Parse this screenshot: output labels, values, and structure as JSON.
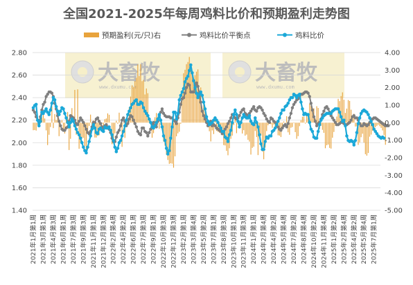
{
  "chart_data": {
    "type": "bar+line",
    "title": "全国2021-2025年每周鸡料比价和预期盈利走势图",
    "legend": [
      {
        "name": "预期盈利(元/只)右",
        "marker": "bar",
        "color": "#E8A33C"
      },
      {
        "name": "鸡料比价平衡点",
        "marker": "line-dot",
        "color": "#7F7F7F"
      },
      {
        "name": "鸡料比价",
        "marker": "line-dot",
        "color": "#1BA8D8"
      }
    ],
    "legend_position": "top",
    "y_left": {
      "min": 1.4,
      "max": 2.8,
      "step": 0.2,
      "ticks": [
        "1.40",
        "1.60",
        "1.80",
        "2.00",
        "2.20",
        "2.40",
        "2.60",
        "2.80"
      ]
    },
    "y_right": {
      "min": -5.0,
      "max": 4.0,
      "step": 1.0,
      "ticks": [
        "-5.00",
        "-4.00",
        "-3.00",
        "-2.00",
        "-1.00",
        "0.00",
        "1.00",
        "2.00",
        "3.00",
        "4.00"
      ]
    },
    "grid": true,
    "x_tick_labels": [
      "2021年1月第1周",
      "2021年3月第1周",
      "2021年4月第3周",
      "2021年6月第1周",
      "2021年7月第3周",
      "2021年9月第3周",
      "2021年11月第1周",
      "2021年12月第3周",
      "2022年2月第4周",
      "2022年4月第2周",
      "2022年6月第1周",
      "2022年7月第3周",
      "2022年9月第1周",
      "2022年10月第3周",
      "2022年12月第3周",
      "2023年2月第1周",
      "2023年3月第4周",
      "2023年5月第2周",
      "2023年7月第1周",
      "2023年8月第3周",
      "2023年10月第1周",
      "2023年11月第3周",
      "2024年1月第1周",
      "2024年2月第4周",
      "2024年4月第2周",
      "2024年5月第4周",
      "2024年7月第2周",
      "2024年8月第4周",
      "2024年10月第2周",
      "2024年11月第4周",
      "2025年1月第2周",
      "2025年2月第4周",
      "2025年4月第2周",
      "2025年5月第4周",
      "2025年7月第1周"
    ],
    "weeks": 243,
    "x_tick_every": 7,
    "series": [
      {
        "name": "鸡料比价",
        "color": "#1BA8D8",
        "axis": "left",
        "values": [
          2.31,
          2.33,
          2.34,
          2.2,
          2.15,
          2.19,
          2.27,
          2.26,
          2.28,
          2.3,
          2.27,
          2.25,
          2.29,
          2.35,
          2.4,
          2.38,
          2.32,
          2.28,
          2.25,
          2.28,
          2.31,
          2.3,
          2.26,
          2.22,
          2.18,
          2.14,
          2.18,
          2.21,
          2.19,
          2.15,
          2.12,
          2.09,
          2.07,
          2.04,
          2,
          1.96,
          1.93,
          1.91,
          1.96,
          2.01,
          2.06,
          2.12,
          2.16,
          2.13,
          2.09,
          2.08,
          2.12,
          2.13,
          2.11,
          2.1,
          2.14,
          2.13,
          2.13,
          2.14,
          2.11,
          2.07,
          2.02,
          1.96,
          1.92,
          1.95,
          2,
          2.02,
          2.06,
          2.1,
          2.15,
          2.2,
          2.25,
          2.28,
          2.31,
          2.34,
          2.35,
          2.37,
          2.38,
          2.34,
          2.34,
          2.36,
          2.35,
          2.31,
          2.28,
          2.26,
          2.24,
          2.21,
          2.18,
          2.14,
          2.13,
          2.15,
          2.18,
          2.21,
          2.25,
          2.2,
          2.14,
          2.06,
          2.02,
          1.95,
          1.9,
          1.93,
          2.04,
          2.14,
          2.27,
          2.27,
          2.21,
          2.26,
          2.38,
          2.42,
          2.45,
          2.48,
          2.54,
          2.57,
          2.59,
          2.64,
          2.69,
          2.62,
          2.55,
          2.49,
          2.44,
          2.4,
          2.43,
          2.45,
          2.42,
          2.36,
          2.3,
          2.23,
          2.19,
          2.16,
          2.17,
          2.18,
          2.2,
          2.22,
          2.2,
          2.18,
          2.15,
          2.13,
          2.1,
          2.1,
          2.05,
          2.04,
          2.01,
          2.07,
          2.11,
          2.18,
          2.25,
          2.29,
          2.25,
          2.19,
          2.14,
          2.18,
          2.22,
          2.25,
          2.23,
          2.22,
          2.22,
          2.24,
          2.19,
          2.17,
          2.16,
          2.22,
          2.18,
          2.14,
          2.07,
          1.99,
          1.94,
          1.94,
          2.01,
          2.05,
          2.04,
          2.06,
          2.06,
          2.1,
          2.11,
          2.13,
          2.16,
          2.19,
          2.22,
          2.26,
          2.29,
          2.29,
          2.32,
          2.33,
          2.35,
          2.38,
          2.4,
          2.4,
          2.43,
          2.42,
          2.4,
          2.42,
          2.43,
          2.36,
          2.3,
          2.25,
          2.26,
          2.25,
          2.25,
          2.18,
          2.12,
          2.1,
          2.05,
          2.04,
          2.04,
          2.1,
          2.16,
          2.2,
          2.22,
          2.24,
          2.25,
          2.26,
          2.26,
          2.26,
          2.26,
          2.28,
          2.29,
          2.3,
          2.3,
          2.3,
          2.27,
          2.23,
          2.19,
          2.2,
          2.15,
          2.06,
          2.02,
          2.01,
          2.02,
          2.01,
          1.98,
          2.02,
          2.09,
          2.17,
          2.22,
          2.26,
          2.28,
          2.29,
          2.28,
          2.27,
          2.25,
          2.22,
          2.19,
          2.16,
          2.12,
          2.1,
          2.08,
          2.06,
          2.05,
          2.04,
          2.05,
          2.04
        ]
      },
      {
        "name": "鸡料比价平衡点",
        "color": "#7F7F7F",
        "axis": "left",
        "values": [
          2.29,
          2.27,
          2.23,
          2.2,
          2.18,
          2.23,
          2.29,
          2.34,
          2.36,
          2.41,
          2.43,
          2.45,
          2.45,
          2.44,
          2.41,
          2.35,
          2.3,
          2.24,
          2.19,
          2.15,
          2.12,
          2.11,
          2.11,
          2.13,
          2.14,
          2.19,
          2.24,
          2.23,
          2.22,
          2.2,
          2.17,
          2.16,
          2.19,
          2.22,
          2.2,
          2.18,
          2.15,
          2.12,
          2.09,
          2.08,
          2.1,
          2.14,
          2.18,
          2.18,
          2.21,
          2.22,
          2.19,
          2.17,
          2.14,
          2.12,
          2.15,
          2.16,
          2.14,
          2.12,
          2.09,
          2.04,
          2.01,
          2.01,
          2.05,
          2.09,
          2.11,
          2.15,
          2.2,
          2.22,
          2.19,
          2.15,
          2.17,
          2.21,
          2.24,
          2.23,
          2.2,
          2.17,
          2.14,
          2.1,
          2.08,
          2.07,
          2.13,
          2.13,
          2.1,
          2.09,
          2.06,
          2.09,
          2.12,
          2.16,
          2.18,
          2.15,
          2.14,
          2.19,
          2.24,
          2.27,
          2.3,
          2.26,
          2.24,
          2.23,
          2.23,
          2.23,
          2.22,
          2.22,
          2.2,
          2.19,
          2.17,
          2.22,
          2.27,
          2.34,
          2.39,
          2.4,
          2.44,
          2.49,
          2.52,
          2.51,
          2.45,
          2.45,
          2.45,
          2.51,
          2.53,
          2.5,
          2.44,
          2.36,
          2.28,
          2.24,
          2.21,
          2.18,
          2.15,
          2.17,
          2.19,
          2.15,
          2.16,
          2.15,
          2.13,
          2.12,
          2.11,
          2.1,
          2.08,
          2.1,
          2.12,
          2.14,
          2.17,
          2.19,
          2.22,
          2.25,
          2.25,
          2.22,
          2.21,
          2.22,
          2.24,
          2.27,
          2.29,
          2.3,
          2.26,
          2.25,
          2.23,
          2.26,
          2.28,
          2.3,
          2.32,
          2.29,
          2.28,
          2.31,
          2.32,
          2.31,
          2.29,
          2.26,
          2.24,
          2.21,
          2.19,
          2.18,
          2.22,
          2.21,
          2.19,
          2.18,
          2.16,
          2.14,
          2.12,
          2.11,
          2.13,
          2.15,
          2.16,
          2.14,
          2.17,
          2.22,
          2.26,
          2.31,
          2.34,
          2.36,
          2.38,
          2.39,
          2.41,
          2.43,
          2.43,
          2.44,
          2.45,
          2.45,
          2.44,
          2.41,
          2.35,
          2.29,
          2.23,
          2.19,
          2.15,
          2.17,
          2.18,
          2.21,
          2.25,
          2.28,
          2.31,
          2.32,
          2.3,
          2.27,
          2.24,
          2.22,
          2.2,
          2.18,
          2.16,
          2.16,
          2.17,
          2.18,
          2.18,
          2.17,
          2.16,
          2.16,
          2.17,
          2.18,
          2.2,
          2.23,
          2.24,
          2.22,
          2.22,
          2.2,
          2.17,
          2.15,
          2.15,
          2.17,
          2.16,
          2.15,
          2.16,
          2.18,
          2.2,
          2.21,
          2.22,
          2.22,
          2.21,
          2.2,
          2.19,
          2.18,
          2.17,
          2.16,
          2.15,
          2.15,
          2.15
        ]
      },
      {
        "name": "预期盈利(元/只)右",
        "color": "#E8A33C",
        "axis": "right",
        "values": [
          -0.43,
          -0.42,
          -0.45,
          -0.14,
          0.21,
          0.02,
          0.3,
          0.53,
          0.24,
          -0.44,
          -1.28,
          -0.69,
          -0.25,
          0.95,
          -0.31,
          0.49,
          0.14,
          0.77,
          -0.77,
          -0.04,
          0.14,
          -0.4,
          -0.62,
          0.34,
          0.61,
          -1.56,
          -0.92,
          0.83,
          0.18,
          1.87,
          -0.69,
          1.9,
          -1.49,
          -1.16,
          -0.88,
          -0.87,
          -1.33,
          -1.76,
          -0.56,
          -0.19,
          0.46,
          -0.15,
          0.13,
          -0.85,
          -0.85,
          -0.75,
          -0.72,
          -0.26,
          -0.06,
          -0.57,
          0.2,
          0.24,
          0.53,
          0.45,
          -0.01,
          -1.23,
          -1.18,
          -0.61,
          0.11,
          -0.06,
          0.57,
          -0.23,
          -1.38,
          -0.04,
          -0.87,
          0.23,
          0.24,
          0.88,
          1.49,
          2.13,
          2.03,
          2.37,
          2.56,
          3.32,
          2.66,
          3.34,
          2.37,
          2.44,
          1.61,
          1.95,
          1.68,
          0.17,
          -0.01,
          -0.86,
          -0.6,
          0.31,
          0.55,
          0.34,
          -0.35,
          -0.13,
          -0.35,
          -1.08,
          -1.31,
          -1.83,
          -2.13,
          -2.35,
          -2.32,
          -2.34,
          -2.57,
          -1.92,
          -0.78,
          -0.61,
          -0.52,
          -0.06,
          1.86,
          2.82,
          3.02,
          3.34,
          3.46,
          3.75,
          3.26,
          2.77,
          2.3,
          2.7,
          2.91,
          3.04,
          1.44,
          2.01,
          0.69,
          1.38,
          0.71,
          -0.03,
          -0.21,
          -0.49,
          -1.07,
          -0.44,
          -0.65,
          0.13,
          -0.47,
          -0.52,
          -0.57,
          -0.27,
          -0.68,
          -1.28,
          -1.3,
          -1.61,
          -1.86,
          -1.46,
          -0.92,
          -0.74,
          -0.14,
          0.26,
          -0.6,
          -0.07,
          -0.19,
          -0.17,
          -0.62,
          -0.43,
          -0.74,
          -0.68,
          -0.98,
          -1.08,
          -1.82,
          -1.44,
          -1.37,
          -0.47,
          -0.82,
          -1.85,
          -0.55,
          -0.73,
          -1.65,
          -2.09,
          -1.43,
          -0.48,
          -0.15,
          -0.04,
          -0.09,
          -0.29,
          -0.11,
          -0.33,
          -0.28,
          -0.72,
          -0.74,
          -0.82,
          -0.3,
          0.07,
          -0.14,
          0.37,
          -0.55,
          -0.69,
          -0.29,
          -0.25,
          -0.03,
          -0.54,
          -0.92,
          -0.77,
          -0.2,
          0.14,
          0.34,
          0.34,
          -0.05,
          0.56,
          0.29,
          1.08,
          0.96,
          0.64,
          0.82,
          0.24,
          0.94,
          0.84,
          -0.37,
          -0.18,
          -0.41,
          -0.58,
          -1.46,
          -1.29,
          -1.25,
          -1.44,
          -1.48,
          -0.86,
          -0.53,
          -0.18,
          0.35,
          1.36,
          1.23,
          1.52,
          1.73,
          1.31,
          0.56,
          0.8,
          1.29,
          1.24,
          0.74,
          0.39,
          0.51,
          -0.22,
          -0.21,
          -1.27,
          -1.12,
          -0.83,
          -0.63,
          -1.14,
          -1.8,
          -1.88,
          -1.73,
          -0.8,
          -0.68,
          -0.46,
          -0.35,
          -0.26,
          -0.18,
          -0.12,
          -0.2,
          -0.3,
          -0.44,
          -0.71,
          -1.26
        ]
      }
    ],
    "watermarks": [
      {
        "brand": "大畜牧",
        "site": "www.dxumu.com"
      },
      {
        "brand": "大畜牧",
        "site": "www.dxumu.com"
      }
    ]
  }
}
